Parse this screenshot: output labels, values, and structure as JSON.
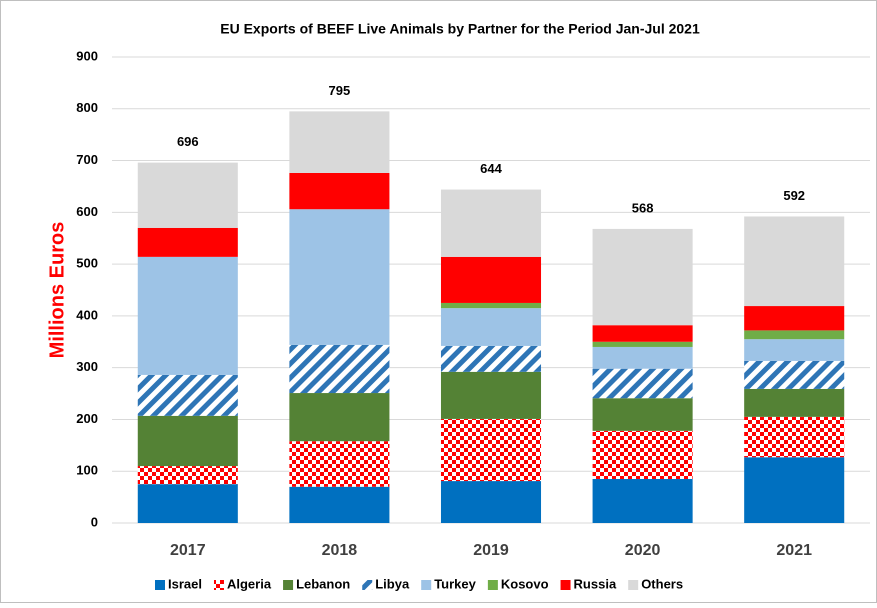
{
  "chart_data": {
    "type": "stacked_bar",
    "title": "EU Exports of BEEF Live Animals by Partner for the Period Jan-Jul 2021",
    "y_label": "Millions Euros",
    "categories": [
      "2017",
      "2018",
      "2019",
      "2020",
      "2021"
    ],
    "series": [
      {
        "name": "Israel",
        "color": "#0070c0",
        "pattern": "solid",
        "values": [
          75,
          70,
          81,
          85,
          127
        ]
      },
      {
        "name": "Algeria",
        "color": "#ff0000",
        "pattern": "checker",
        "values": [
          35,
          88,
          120,
          93,
          78
        ]
      },
      {
        "name": "Lebanon",
        "color": "#548235",
        "pattern": "solid",
        "values": [
          97,
          93,
          91,
          63,
          54
        ]
      },
      {
        "name": "Libya",
        "color": "#2e75b6",
        "pattern": "diagonal",
        "values": [
          79,
          93,
          50,
          57,
          54
        ]
      },
      {
        "name": "Turkey",
        "color": "#9dc3e6",
        "pattern": "solid",
        "values": [
          228,
          262,
          73,
          42,
          42
        ]
      },
      {
        "name": "Kosovo",
        "color": "#70ad47",
        "pattern": "solid",
        "values": [
          0,
          0,
          10,
          10,
          17
        ]
      },
      {
        "name": "Russia",
        "color": "#ff0000",
        "pattern": "solid",
        "values": [
          56,
          70,
          89,
          32,
          47
        ]
      },
      {
        "name": "Others",
        "color": "#d9d9d9",
        "pattern": "solid",
        "values": [
          126,
          119,
          130,
          186,
          173
        ]
      }
    ],
    "totals": [
      696,
      795,
      644,
      568,
      592
    ],
    "ylim": [
      0,
      900
    ],
    "yticks": [
      0,
      100,
      200,
      300,
      400,
      500,
      600,
      700,
      800,
      900
    ],
    "grid": true,
    "legend": "bottom"
  }
}
